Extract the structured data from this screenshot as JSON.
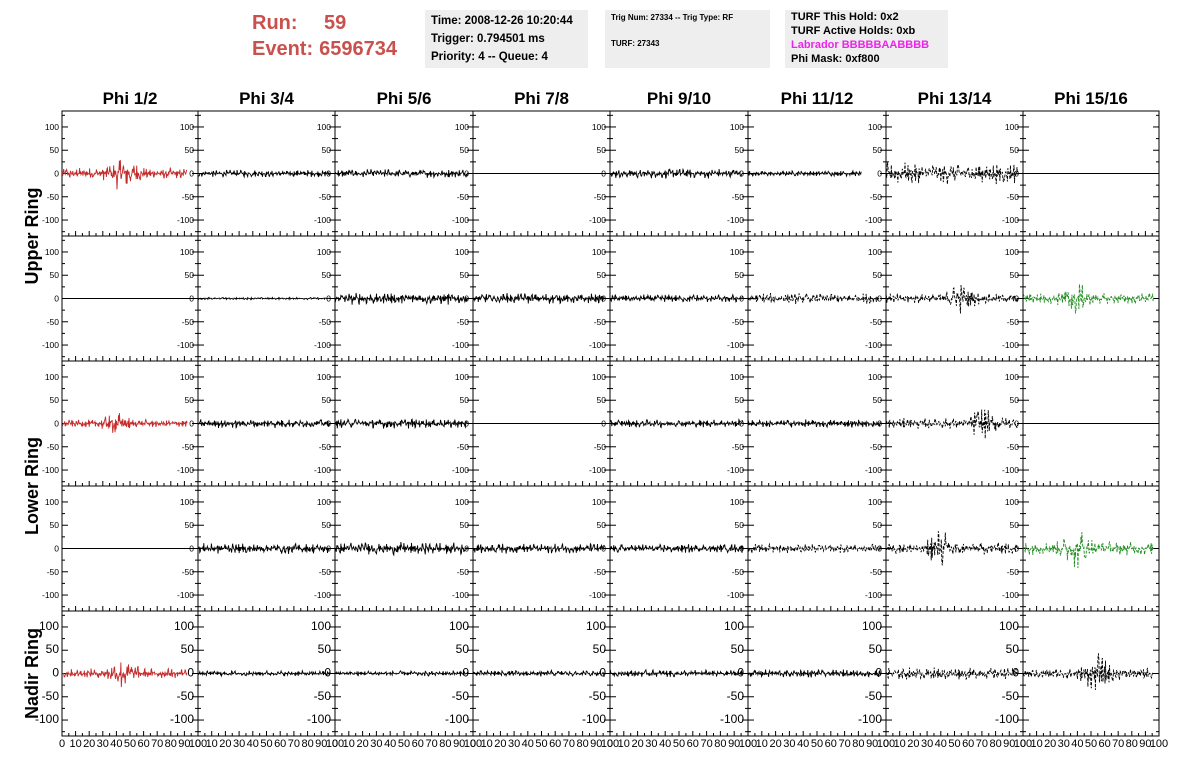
{
  "header": {
    "run_label": "Run:",
    "run_value": "59",
    "event_label": "Event:",
    "event_value": "6596734",
    "time_line": "Time: 2008-12-26 10:20:44",
    "trigger_line": "Trigger: 0.794501 ms",
    "priority_line": "Priority: 4 -- Queue: 4",
    "trig_line": "Trig Num: 27334 -- Trig Type: RF",
    "turf_line": "TURF: 27343",
    "turf_hold_line": "TURF This Hold: 0x2",
    "turf_active_line": "TURF Active Holds: 0xb",
    "labrador_line": "Labrador BBBBBAABBBB",
    "phi_mask_line": "Phi Mask: 0xf800"
  },
  "colors": {
    "run_text": "#c9504d",
    "labrador_text": "#ee22ee",
    "trace_red": "#c42a2a",
    "trace_green": "#1f8c1f",
    "trace_black": "#000000",
    "info_bg": "#eeeeee"
  },
  "chart_data": {
    "type": "line",
    "columns": [
      "Phi 1/2",
      "Phi 3/4",
      "Phi 5/6",
      "Phi 7/8",
      "Phi 9/10",
      "Phi 11/12",
      "Phi 13/14",
      "Phi 15/16"
    ],
    "rings": [
      "Upper Ring",
      "Lower Ring",
      "Nadir Ring"
    ],
    "row_ring_labels": [
      {
        "label": "Upper Ring",
        "rows": [
          0,
          1
        ]
      },
      {
        "label": "Lower Ring",
        "rows": [
          2,
          3
        ]
      },
      {
        "label": "Nadir Ring",
        "rows": [
          4,
          4
        ]
      }
    ],
    "xlim": [
      0,
      100
    ],
    "ylim": [
      -130,
      130
    ],
    "x_ticks": [
      0,
      10,
      20,
      30,
      40,
      50,
      60,
      70,
      80,
      90,
      100
    ],
    "y_ticks": [
      -100,
      -50,
      0,
      50,
      100
    ],
    "grid": false,
    "panels": [
      [
        {
          "style": "red",
          "amp": 22,
          "burst": 45,
          "xmax": 92
        },
        {
          "style": "black",
          "amp": 8,
          "xmax": 96
        },
        {
          "style": "black",
          "amp": 10,
          "xmax": 96
        },
        {
          "style": "flat",
          "amp": 0
        },
        {
          "style": "black",
          "amp": 11,
          "xmax": 96
        },
        {
          "style": "black",
          "amp": 6,
          "xmax": 82
        },
        {
          "style": "dashed",
          "amp": 24,
          "xmax": 96
        },
        {
          "style": "flat",
          "amp": 0
        }
      ],
      [
        {
          "style": "flat",
          "amp": 0
        },
        {
          "style": "black",
          "amp": 2.5,
          "xmax": 96
        },
        {
          "style": "black",
          "amp": 14,
          "xmax": 96
        },
        {
          "style": "black",
          "amp": 12,
          "xmax": 96
        },
        {
          "style": "black",
          "amp": 9,
          "xmax": 96
        },
        {
          "style": "dashed",
          "amp": 12,
          "xmax": 96
        },
        {
          "style": "dashed",
          "amp": 18,
          "burst": 55,
          "xmax": 96
        },
        {
          "style": "green_dashed",
          "amp": 20,
          "burst": 38,
          "xmax": 96
        }
      ],
      [
        {
          "style": "red",
          "amp": 14,
          "burst": 40,
          "xmax": 92
        },
        {
          "style": "black",
          "amp": 10,
          "xmax": 96
        },
        {
          "style": "black",
          "amp": 11,
          "xmax": 96
        },
        {
          "style": "flat",
          "amp": 0
        },
        {
          "style": "black",
          "amp": 9,
          "xmax": 96
        },
        {
          "style": "black",
          "amp": 9,
          "xmax": 96
        },
        {
          "style": "dashed",
          "amp": 20,
          "burst": 70,
          "xmax": 96
        },
        {
          "style": "flat",
          "amp": 0
        }
      ],
      [
        {
          "style": "flat",
          "amp": 0
        },
        {
          "style": "black",
          "amp": 12,
          "xmax": 96
        },
        {
          "style": "black",
          "amp": 14,
          "xmax": 96
        },
        {
          "style": "black",
          "amp": 11,
          "xmax": 96
        },
        {
          "style": "black",
          "amp": 10,
          "xmax": 96
        },
        {
          "style": "dashed",
          "amp": 10,
          "xmax": 96
        },
        {
          "style": "dashed",
          "amp": 22,
          "burst": 40,
          "xmax": 96
        },
        {
          "style": "green_dashed",
          "amp": 24,
          "burst": 40,
          "xmax": 96
        }
      ],
      [
        {
          "style": "red",
          "amp": 18,
          "burst": 45,
          "xmax": 92
        },
        {
          "style": "black",
          "amp": 6,
          "xmax": 96
        },
        {
          "style": "black",
          "amp": 6,
          "xmax": 96
        },
        {
          "style": "black",
          "amp": 7,
          "xmax": 96
        },
        {
          "style": "black",
          "amp": 8,
          "xmax": 96
        },
        {
          "style": "black",
          "amp": 9,
          "xmax": 96
        },
        {
          "style": "dashed",
          "amp": 14,
          "xmax": 96
        },
        {
          "style": "dashed",
          "amp": 22,
          "burst": 55,
          "xmax": 96
        }
      ]
    ]
  }
}
